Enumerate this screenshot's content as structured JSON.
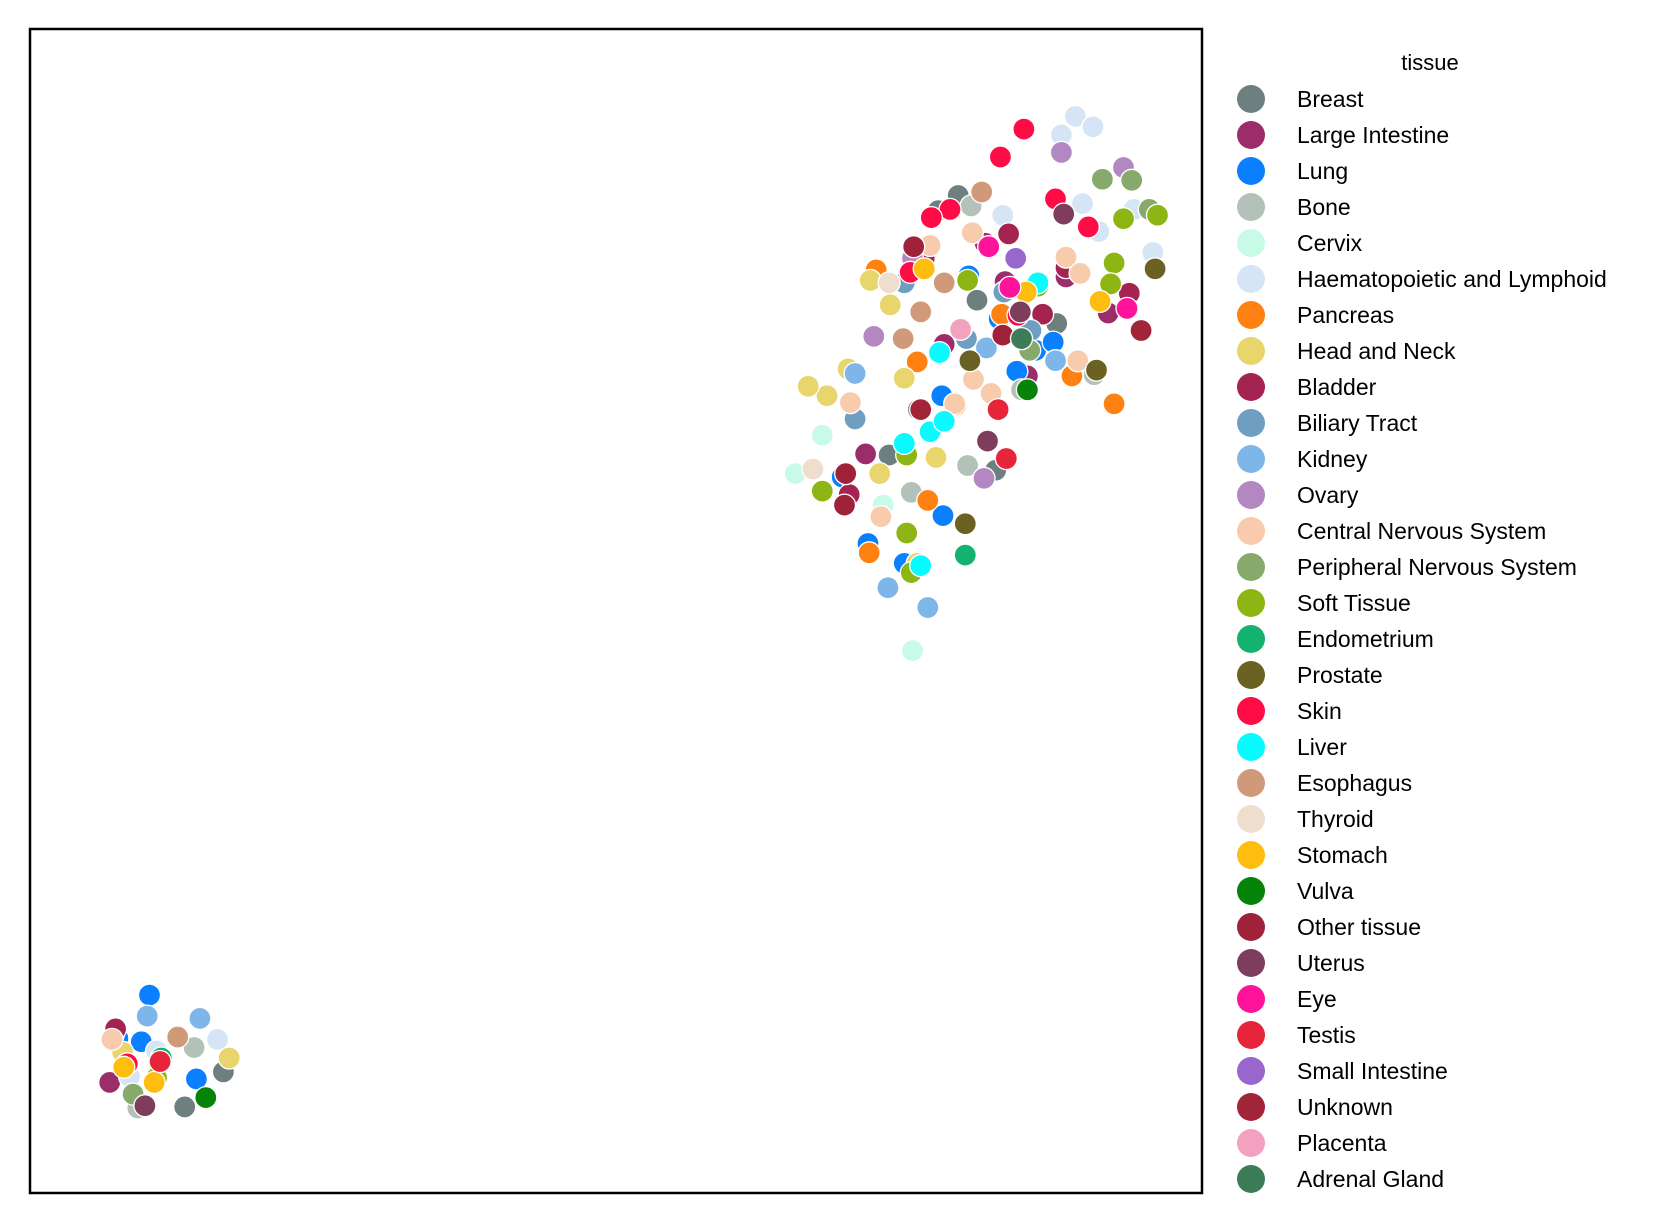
{
  "chart_data": {
    "type": "scatter",
    "xlabel": "",
    "ylabel": "",
    "xlim": [
      0,
      100
    ],
    "ylim": [
      0,
      100
    ],
    "axes_ticks": false,
    "grid": false,
    "legend": {
      "title": "tissue",
      "placement": "outside-right"
    },
    "series": [
      {
        "name": "Breast",
        "color": "#6e7f80",
        "points": [
          [
            79.2,
            85.7
          ],
          [
            80.8,
            76.7
          ],
          [
            73.3,
            63.4
          ],
          [
            77.5,
            84.4
          ],
          [
            87.6,
            74.7
          ],
          [
            75.8,
            67.3
          ],
          [
            82.4,
            62.1
          ],
          [
            13.2,
            7.4
          ],
          [
            16.5,
            10.4
          ]
        ]
      },
      {
        "name": "Large Intestine",
        "color": "#9b2d6a",
        "points": [
          [
            81.5,
            81.6
          ],
          [
            83.2,
            78.3
          ],
          [
            88.4,
            78.7
          ],
          [
            92.0,
            75.6
          ],
          [
            85.1,
            70.2
          ],
          [
            71.3,
            63.5
          ],
          [
            78.0,
            72.9
          ],
          [
            6.8,
            9.5
          ]
        ]
      },
      {
        "name": "Lung",
        "color": "#0a80ff",
        "points": [
          [
            80.1,
            78.8
          ],
          [
            82.7,
            75.1
          ],
          [
            85.8,
            72.4
          ],
          [
            76.0,
            75.8
          ],
          [
            77.8,
            68.5
          ],
          [
            69.3,
            61.5
          ],
          [
            71.5,
            55.8
          ],
          [
            74.6,
            54.1
          ],
          [
            77.9,
            58.2
          ],
          [
            84.2,
            70.6
          ],
          [
            87.3,
            73.1
          ],
          [
            10.2,
            17.0
          ],
          [
            9.5,
            13.0
          ],
          [
            14.2,
            9.8
          ],
          [
            7.5,
            13.3
          ]
        ]
      },
      {
        "name": "Bone",
        "color": "#b4c1b8",
        "points": [
          [
            80.3,
            84.8
          ],
          [
            84.6,
            69.0
          ],
          [
            80.0,
            62.5
          ],
          [
            90.8,
            70.3
          ],
          [
            75.2,
            60.2
          ],
          [
            14.0,
            12.5
          ],
          [
            9.2,
            7.3
          ]
        ]
      },
      {
        "name": "Cervix",
        "color": "#c8fbe7",
        "points": [
          [
            65.3,
            61.8
          ],
          [
            67.6,
            65.1
          ],
          [
            72.8,
            59.1
          ],
          [
            75.3,
            46.6
          ],
          [
            11.0,
            11.1
          ]
        ]
      },
      {
        "name": "Haematopoietic and Lymphoid",
        "color": "#d5e5f6",
        "points": [
          [
            88.0,
            90.9
          ],
          [
            89.2,
            92.5
          ],
          [
            90.7,
            91.6
          ],
          [
            89.8,
            85.0
          ],
          [
            91.2,
            82.6
          ],
          [
            95.8,
            80.8
          ],
          [
            94.2,
            84.5
          ],
          [
            83.0,
            84.0
          ],
          [
            7.1,
            13.6
          ],
          [
            10.8,
            12.2
          ],
          [
            16.0,
            13.2
          ],
          [
            8.5,
            10.0
          ]
        ]
      },
      {
        "name": "Pancreas",
        "color": "#ff8111",
        "points": [
          [
            72.2,
            79.3
          ],
          [
            75.7,
            71.4
          ],
          [
            79.0,
            67.7
          ],
          [
            76.6,
            59.5
          ],
          [
            71.6,
            55.0
          ],
          [
            82.9,
            75.5
          ],
          [
            92.5,
            67.8
          ],
          [
            88.9,
            70.2
          ]
        ]
      },
      {
        "name": "Head and Neck",
        "color": "#e8d56c",
        "points": [
          [
            71.7,
            78.4
          ],
          [
            73.4,
            76.3
          ],
          [
            68.0,
            68.5
          ],
          [
            66.4,
            69.3
          ],
          [
            74.6,
            70.0
          ],
          [
            69.8,
            70.8
          ],
          [
            72.5,
            61.8
          ],
          [
            75.7,
            54.1
          ],
          [
            77.3,
            63.2
          ],
          [
            7.9,
            12.1
          ],
          [
            17.0,
            11.6
          ]
        ]
      },
      {
        "name": "Bladder",
        "color": "#a52350",
        "points": [
          [
            76.3,
            80.3
          ],
          [
            83.5,
            82.4
          ],
          [
            86.4,
            75.5
          ],
          [
            88.4,
            79.5
          ],
          [
            93.8,
            77.3
          ],
          [
            69.9,
            60.0
          ],
          [
            7.3,
            14.1
          ]
        ]
      },
      {
        "name": "Biliary Tract",
        "color": "#6f9fc0",
        "points": [
          [
            74.6,
            78.2
          ],
          [
            83.1,
            77.4
          ],
          [
            85.4,
            74.1
          ],
          [
            79.9,
            73.4
          ],
          [
            70.4,
            66.5
          ]
        ]
      },
      {
        "name": "Kidney",
        "color": "#7fb6e9",
        "points": [
          [
            81.6,
            72.6
          ],
          [
            73.2,
            52.0
          ],
          [
            76.6,
            50.3
          ],
          [
            70.4,
            70.4
          ],
          [
            87.5,
            71.5
          ],
          [
            10.0,
            15.2
          ],
          [
            14.5,
            15.0
          ]
        ]
      },
      {
        "name": "Ovary",
        "color": "#b387c1",
        "points": [
          [
            88.0,
            89.4
          ],
          [
            93.3,
            88.1
          ],
          [
            75.3,
            80.3
          ],
          [
            81.4,
            61.4
          ],
          [
            72.0,
            73.6
          ]
        ]
      },
      {
        "name": "Central Nervous System",
        "color": "#f8cbad",
        "points": [
          [
            76.8,
            81.4
          ],
          [
            80.4,
            82.5
          ],
          [
            88.4,
            80.4
          ],
          [
            72.6,
            58.1
          ],
          [
            80.5,
            69.9
          ],
          [
            70.0,
            67.9
          ],
          [
            78.9,
            67.8
          ],
          [
            82.0,
            68.7
          ],
          [
            89.6,
            79.0
          ],
          [
            89.4,
            71.5
          ],
          [
            7.0,
            13.2
          ]
        ]
      },
      {
        "name": "Peripheral Nervous System",
        "color": "#87aa6c",
        "points": [
          [
            91.5,
            87.1
          ],
          [
            94.0,
            87.0
          ],
          [
            95.5,
            84.5
          ],
          [
            85.3,
            72.4
          ],
          [
            8.8,
            8.5
          ]
        ]
      },
      {
        "name": "Soft Tissue",
        "color": "#8db614",
        "points": [
          [
            96.2,
            84.0
          ],
          [
            93.3,
            83.7
          ],
          [
            92.5,
            79.9
          ],
          [
            86.0,
            77.9
          ],
          [
            80.0,
            78.4
          ],
          [
            74.8,
            63.4
          ],
          [
            67.6,
            60.3
          ],
          [
            74.8,
            56.7
          ],
          [
            75.2,
            53.3
          ],
          [
            92.2,
            78.1
          ],
          [
            10.8,
            9.9
          ]
        ]
      },
      {
        "name": "Endometrium",
        "color": "#13b26e",
        "points": [
          [
            79.8,
            54.8
          ],
          [
            11.2,
            11.6
          ]
        ]
      },
      {
        "name": "Prostate",
        "color": "#6b6122",
        "points": [
          [
            96.0,
            79.4
          ],
          [
            91.0,
            70.7
          ],
          [
            80.2,
            71.5
          ],
          [
            79.8,
            57.5
          ]
        ]
      },
      {
        "name": "Skin",
        "color": "#ff0b45",
        "points": [
          [
            84.8,
            91.4
          ],
          [
            82.8,
            89.0
          ],
          [
            78.5,
            84.5
          ],
          [
            76.9,
            83.8
          ],
          [
            87.5,
            85.4
          ],
          [
            90.3,
            83.0
          ],
          [
            84.3,
            75.4
          ],
          [
            75.1,
            79.1
          ],
          [
            8.3,
            11.1
          ]
        ]
      },
      {
        "name": "Liver",
        "color": "#08fbff",
        "points": [
          [
            77.6,
            72.2
          ],
          [
            76.8,
            65.4
          ],
          [
            74.6,
            64.4
          ],
          [
            78.0,
            66.3
          ],
          [
            76.0,
            53.9
          ],
          [
            86.0,
            78.2
          ]
        ]
      },
      {
        "name": "Esophagus",
        "color": "#d09a7a",
        "points": [
          [
            81.2,
            86.0
          ],
          [
            78.0,
            78.2
          ],
          [
            74.5,
            73.4
          ],
          [
            76.0,
            75.7
          ],
          [
            12.6,
            13.4
          ]
        ]
      },
      {
        "name": "Thyroid",
        "color": "#efdece",
        "points": [
          [
            73.3,
            78.2
          ],
          [
            66.8,
            62.2
          ],
          [
            79.5,
            74.3
          ]
        ]
      },
      {
        "name": "Stomach",
        "color": "#ffbd10",
        "points": [
          [
            91.3,
            76.6
          ],
          [
            85.0,
            77.4
          ],
          [
            76.3,
            79.4
          ],
          [
            8.0,
            10.8
          ],
          [
            10.6,
            9.5
          ]
        ]
      },
      {
        "name": "Vulva",
        "color": "#068308",
        "points": [
          [
            85.1,
            69.0
          ],
          [
            15.0,
            8.2
          ]
        ]
      },
      {
        "name": "Other tissue",
        "color": "#9f2238",
        "points": [
          [
            75.4,
            81.3
          ],
          [
            69.6,
            61.8
          ],
          [
            83.0,
            73.7
          ],
          [
            69.5,
            59.1
          ]
        ]
      },
      {
        "name": "Uterus",
        "color": "#7f3d5e",
        "points": [
          [
            88.2,
            84.1
          ],
          [
            84.5,
            75.7
          ],
          [
            81.7,
            64.6
          ],
          [
            9.8,
            7.5
          ]
        ]
      },
      {
        "name": "Eye",
        "color": "#ff139b",
        "points": [
          [
            81.8,
            81.3
          ],
          [
            83.6,
            77.8
          ],
          [
            93.6,
            76.0
          ]
        ]
      },
      {
        "name": "Testis",
        "color": "#e6243a",
        "points": [
          [
            82.6,
            67.3
          ],
          [
            83.3,
            63.1
          ],
          [
            11.1,
            11.3
          ]
        ]
      },
      {
        "name": "Small Intestine",
        "color": "#9866cc",
        "points": [
          [
            84.1,
            80.3
          ]
        ]
      },
      {
        "name": "Unknown",
        "color": "#a12438",
        "points": [
          [
            76.0,
            67.3
          ],
          [
            94.8,
            74.1
          ]
        ]
      },
      {
        "name": "Placenta",
        "color": "#f2a1bf",
        "points": [
          [
            79.4,
            74.2
          ]
        ]
      },
      {
        "name": "Adrenal Gland",
        "color": "#3c7d58",
        "points": [
          [
            84.6,
            73.4
          ]
        ]
      }
    ]
  }
}
